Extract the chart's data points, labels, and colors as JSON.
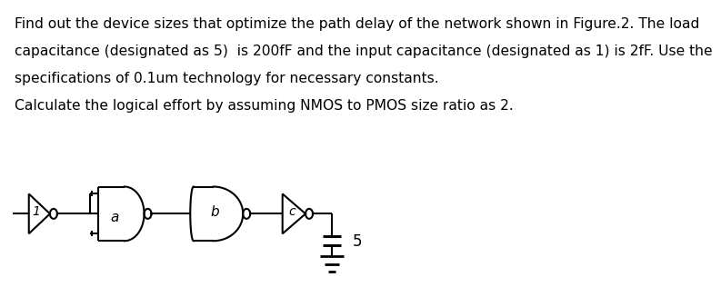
{
  "text_lines": [
    "Find out the device sizes that optimize the path delay of the network shown in Figure.2. The load",
    "capacitance (designated as 5)  is 200fF and the input capacitance (designated as 1) is 2fF. Use the",
    "specifications of 0.1um technology for necessary constants.",
    "Calculate the logical effort by assuming NMOS to PMOS size ratio as 2."
  ],
  "text_color": "#000000",
  "background_color": "#ffffff",
  "text_fontsize": 11.2,
  "circuit": {
    "label_1": "1",
    "label_a": "a",
    "label_b": "b",
    "label_c": "c",
    "label_5": "5"
  }
}
